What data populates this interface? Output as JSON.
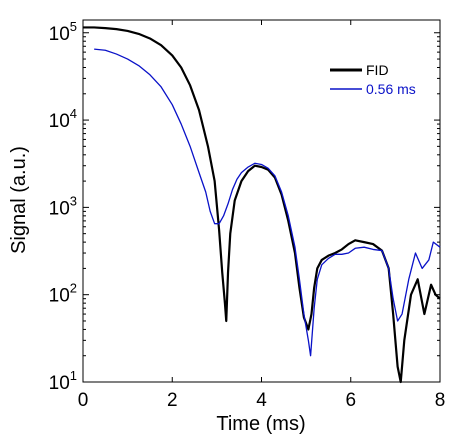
{
  "chart_data": {
    "type": "line",
    "xlabel": "Time (ms)",
    "ylabel": "Signal (a.u.)",
    "xlim": [
      0,
      8
    ],
    "ylim": [
      10,
      140000
    ],
    "yscale": "log",
    "grid": false,
    "legend_position": "top-right",
    "x_ticks": [
      {
        "value": 0,
        "label": "0"
      },
      {
        "value": 2,
        "label": "2"
      },
      {
        "value": 4,
        "label": "4"
      },
      {
        "value": 6,
        "label": "6"
      },
      {
        "value": 8,
        "label": "8"
      }
    ],
    "y_ticks": [
      {
        "value": 10,
        "base": "10",
        "exp": "1"
      },
      {
        "value": 100,
        "base": "10",
        "exp": "2"
      },
      {
        "value": 1000,
        "base": "10",
        "exp": "3"
      },
      {
        "value": 10000,
        "base": "10",
        "exp": "4"
      },
      {
        "value": 100000,
        "base": "10",
        "exp": "5"
      }
    ],
    "series": [
      {
        "name": "FID",
        "color": "#000000",
        "x": [
          0,
          0.25,
          0.5,
          0.75,
          1.0,
          1.25,
          1.5,
          1.75,
          2.0,
          2.2,
          2.4,
          2.6,
          2.8,
          2.95,
          3.05,
          3.12,
          3.18,
          3.21,
          3.25,
          3.3,
          3.4,
          3.55,
          3.7,
          3.85,
          4.0,
          4.15,
          4.3,
          4.45,
          4.6,
          4.75,
          4.85,
          4.95,
          5.05,
          5.12,
          5.18,
          5.25,
          5.35,
          5.5,
          5.65,
          5.8,
          5.95,
          6.1,
          6.3,
          6.5,
          6.7,
          6.85,
          6.95,
          7.05,
          7.12,
          7.2,
          7.35,
          7.5,
          7.65,
          7.8,
          7.9,
          8.0
        ],
        "y": [
          115000,
          115000,
          113000,
          110000,
          105000,
          97000,
          86000,
          72000,
          55000,
          40000,
          25000,
          13000,
          5000,
          2000,
          550,
          180,
          80,
          50,
          180,
          500,
          1200,
          2000,
          2600,
          3000,
          2900,
          2700,
          2200,
          1400,
          700,
          300,
          120,
          55,
          40,
          60,
          120,
          200,
          250,
          280,
          300,
          330,
          380,
          420,
          400,
          380,
          320,
          200,
          60,
          15,
          10,
          30,
          100,
          150,
          60,
          130,
          100,
          90
        ]
      },
      {
        "name": "0.56 ms",
        "color": "#0a12c8",
        "x": [
          0.25,
          0.5,
          0.75,
          1.0,
          1.25,
          1.5,
          1.75,
          2.0,
          2.2,
          2.4,
          2.6,
          2.75,
          2.85,
          2.95,
          3.05,
          3.15,
          3.25,
          3.35,
          3.45,
          3.55,
          3.7,
          3.85,
          4.0,
          4.15,
          4.3,
          4.45,
          4.6,
          4.75,
          4.85,
          4.95,
          5.05,
          5.1,
          5.18,
          5.25,
          5.35,
          5.5,
          5.65,
          5.8,
          5.95,
          6.1,
          6.3,
          6.5,
          6.7,
          6.85,
          6.95,
          7.05,
          7.15,
          7.3,
          7.45,
          7.6,
          7.75,
          7.85,
          8.0
        ],
        "y": [
          65000,
          63000,
          57000,
          50000,
          42000,
          33000,
          24000,
          15000,
          9000,
          5000,
          2500,
          1500,
          900,
          650,
          650,
          800,
          1100,
          1600,
          2100,
          2500,
          2900,
          3200,
          3100,
          2800,
          2300,
          1500,
          800,
          350,
          150,
          60,
          30,
          20,
          70,
          150,
          220,
          260,
          290,
          290,
          300,
          340,
          350,
          330,
          320,
          200,
          90,
          50,
          60,
          150,
          300,
          200,
          250,
          400,
          350
        ]
      }
    ]
  }
}
